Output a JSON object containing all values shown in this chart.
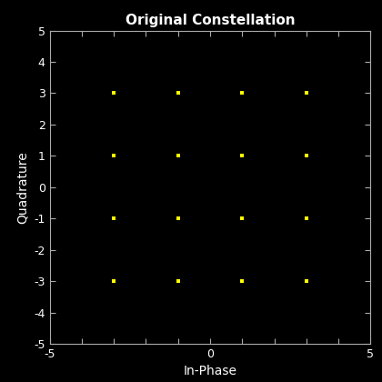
{
  "title": "Original Constellation",
  "xlabel": "In-Phase",
  "ylabel": "Quadrature",
  "x": [
    -3,
    -3,
    -3,
    -3,
    -1,
    -1,
    -1,
    -1,
    1,
    1,
    1,
    1,
    3,
    3,
    3,
    3
  ],
  "y": [
    -3,
    -1,
    1,
    3,
    -3,
    -1,
    1,
    3,
    -3,
    -1,
    1,
    3,
    -3,
    -1,
    1,
    3
  ],
  "marker": "s",
  "marker_color": "#ffff00",
  "marker_size": 3,
  "background_color": "#000000",
  "axes_face_color": "#000000",
  "text_color": "#ffffff",
  "tick_color": "#aaaaaa",
  "spine_color": "#aaaaaa",
  "xlim": [
    -5,
    5
  ],
  "ylim": [
    -5,
    5
  ],
  "xticks": [
    -5,
    -4,
    -3,
    -2,
    -1,
    0,
    1,
    2,
    3,
    4,
    5
  ],
  "xticklabels": [
    "-5",
    "",
    "",
    "",
    "",
    "0",
    "",
    "",
    "",
    "",
    "5"
  ],
  "yticks": [
    -5,
    -4,
    -3,
    -2,
    -1,
    0,
    1,
    2,
    3,
    4,
    5
  ],
  "yticklabels": [
    "-5",
    "-4",
    "-3",
    "-2",
    "-1",
    "0",
    "1",
    "2",
    "3",
    "4",
    "5"
  ],
  "title_fontsize": 11,
  "label_fontsize": 10,
  "tick_fontsize": 9
}
